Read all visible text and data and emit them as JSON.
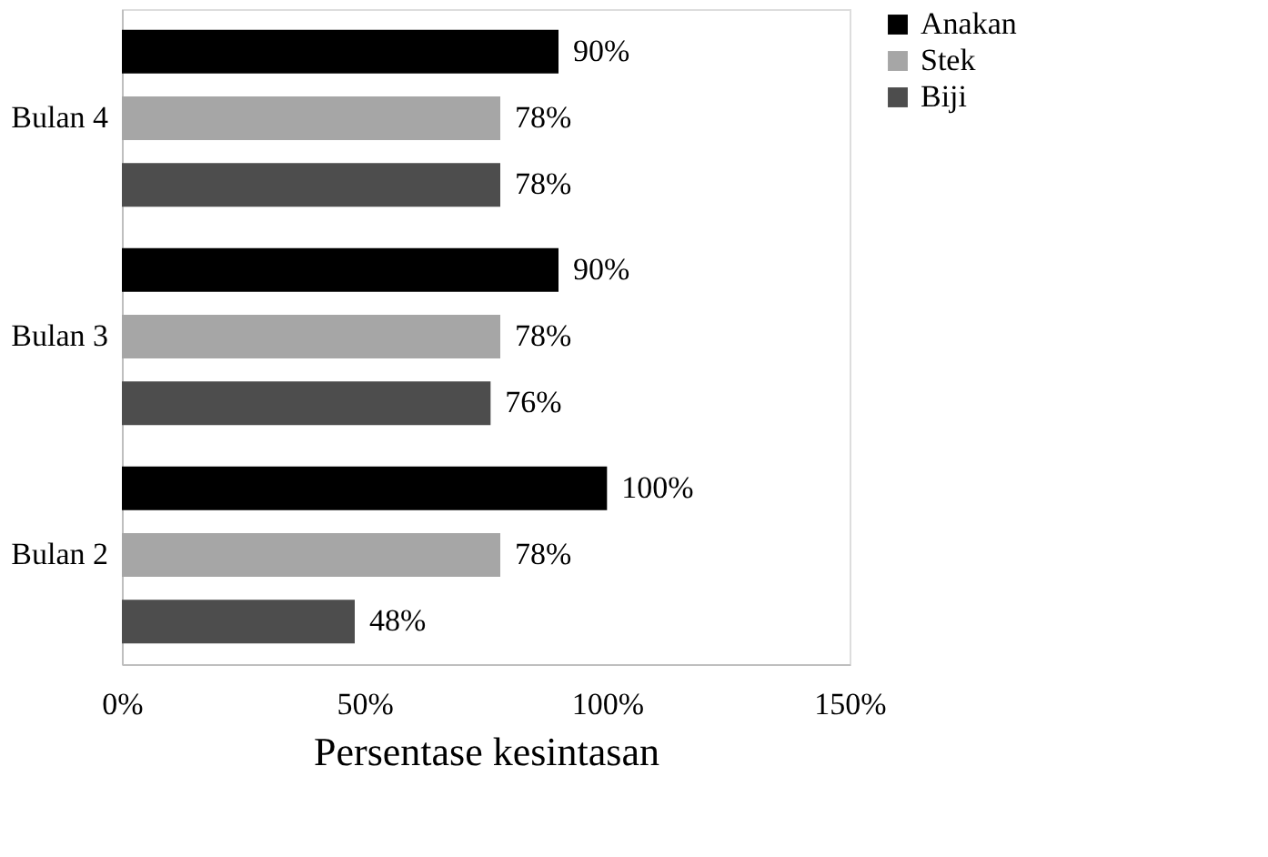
{
  "chart_data": {
    "type": "bar",
    "orientation": "horizontal",
    "xlabel": "Persentase kesintasan",
    "categories": [
      "Bulan 4",
      "Bulan 3",
      "Bulan 2"
    ],
    "series": [
      {
        "name": "Anakan",
        "color": "#000000",
        "values": [
          90,
          90,
          100
        ],
        "value_labels": [
          "90%",
          "90%",
          "100%"
        ]
      },
      {
        "name": "Stek",
        "color": "#a6a6a6",
        "values": [
          78,
          78,
          78
        ],
        "value_labels": [
          "78%",
          "78%",
          "78%"
        ]
      },
      {
        "name": "Biji",
        "color": "#4d4d4d",
        "values": [
          78,
          76,
          48
        ],
        "value_labels": [
          "78%",
          "76%",
          "48%"
        ]
      }
    ],
    "xlim": [
      0,
      150
    ],
    "xticks": [
      {
        "value": 0,
        "label": "0%"
      },
      {
        "value": 50,
        "label": "50%"
      },
      {
        "value": 100,
        "label": "100%"
      },
      {
        "value": 150,
        "label": "150%"
      }
    ],
    "grid": false,
    "legend": "right"
  }
}
